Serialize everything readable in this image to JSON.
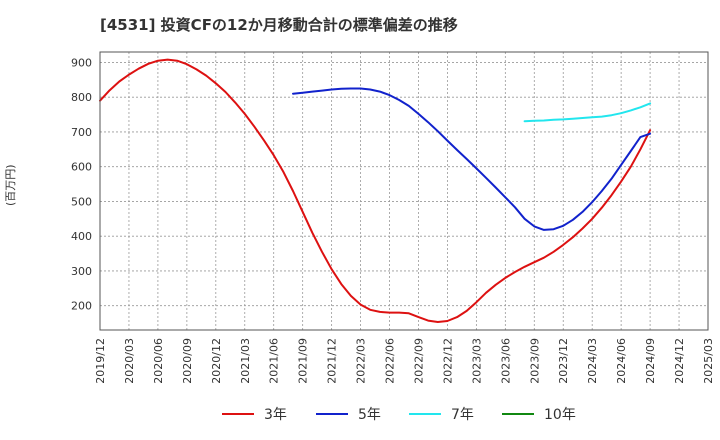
{
  "chart_data": {
    "type": "line",
    "title": "[4531]  投資CFの12か月移動合計の標準偏差の推移",
    "ylabel": "(百万円)",
    "xlabel": "",
    "ylim": [
      130,
      930
    ],
    "yticks": [
      200,
      300,
      400,
      500,
      600,
      700,
      800,
      900
    ],
    "x_tick_labels": [
      "2019/12",
      "2020/03",
      "2020/06",
      "2020/09",
      "2020/12",
      "2021/03",
      "2021/06",
      "2021/09",
      "2021/12",
      "2022/03",
      "2022/06",
      "2022/09",
      "2022/12",
      "2023/03",
      "2023/06",
      "2023/09",
      "2023/12",
      "2024/03",
      "2024/06",
      "2024/09",
      "2024/12",
      "2025/03"
    ],
    "grid": true,
    "legend_position": "bottom",
    "series": [
      {
        "name": "3年",
        "color": "#dd1111",
        "x": [
          "2019/12",
          "2020/01",
          "2020/02",
          "2020/03",
          "2020/04",
          "2020/05",
          "2020/06",
          "2020/07",
          "2020/08",
          "2020/09",
          "2020/10",
          "2020/11",
          "2020/12",
          "2021/01",
          "2021/02",
          "2021/03",
          "2021/04",
          "2021/05",
          "2021/06",
          "2021/07",
          "2021/08",
          "2021/09",
          "2021/10",
          "2021/11",
          "2021/12",
          "2022/01",
          "2022/02",
          "2022/03",
          "2022/04",
          "2022/05",
          "2022/06",
          "2022/07",
          "2022/08",
          "2022/09",
          "2022/10",
          "2022/11",
          "2022/12",
          "2023/01",
          "2023/02",
          "2023/03",
          "2023/04",
          "2023/05",
          "2023/06",
          "2023/07",
          "2023/08",
          "2023/09",
          "2023/10",
          "2023/11",
          "2023/12",
          "2024/01",
          "2024/02",
          "2024/03",
          "2024/04",
          "2024/05",
          "2024/06",
          "2024/07",
          "2024/08",
          "2024/09"
        ],
        "values": [
          790,
          820,
          845,
          865,
          882,
          896,
          905,
          908,
          905,
          895,
          880,
          862,
          840,
          815,
          785,
          752,
          715,
          675,
          633,
          585,
          530,
          470,
          410,
          355,
          305,
          262,
          228,
          203,
          188,
          182,
          180,
          180,
          178,
          167,
          157,
          153,
          156,
          167,
          185,
          210,
          237,
          260,
          280,
          297,
          312,
          325,
          338,
          355,
          375,
          397,
          422,
          450,
          482,
          518,
          557,
          600,
          650,
          705
        ],
        "values_note": "unit: 百万円"
      },
      {
        "name": "5年",
        "color": "#1122cc",
        "x": [
          "2021/08",
          "2021/09",
          "2021/10",
          "2021/11",
          "2021/12",
          "2022/01",
          "2022/02",
          "2022/03",
          "2022/04",
          "2022/05",
          "2022/06",
          "2022/07",
          "2022/08",
          "2022/09",
          "2022/10",
          "2022/11",
          "2022/12",
          "2023/01",
          "2023/02",
          "2023/03",
          "2023/04",
          "2023/05",
          "2023/06",
          "2023/07",
          "2023/08",
          "2023/09",
          "2023/10",
          "2023/11",
          "2023/12",
          "2024/01",
          "2024/02",
          "2024/03",
          "2024/04",
          "2024/05",
          "2024/06",
          "2024/07",
          "2024/08",
          "2024/09"
        ],
        "values": [
          810,
          813,
          816,
          819,
          822,
          824,
          825,
          825,
          822,
          816,
          806,
          792,
          775,
          752,
          728,
          702,
          675,
          648,
          622,
          595,
          568,
          540,
          512,
          483,
          450,
          428,
          418,
          420,
          430,
          447,
          470,
          498,
          530,
          565,
          605,
          645,
          685,
          695
        ]
      },
      {
        "name": "7年",
        "color": "#22e6ee",
        "x": [
          "2023/08",
          "2023/09",
          "2023/10",
          "2023/11",
          "2023/12",
          "2024/01",
          "2024/02",
          "2024/03",
          "2024/04",
          "2024/05",
          "2024/06",
          "2024/07",
          "2024/08",
          "2024/09"
        ],
        "values": [
          731,
          732,
          733,
          735,
          736,
          738,
          740,
          742,
          744,
          748,
          754,
          762,
          771,
          782
        ]
      },
      {
        "name": "10年",
        "color": "#118811",
        "x": [],
        "values": []
      }
    ]
  }
}
